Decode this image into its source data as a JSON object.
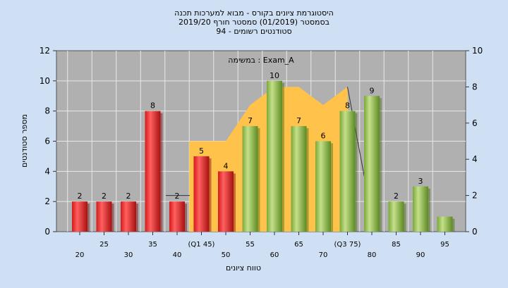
{
  "chart_data": {
    "type": "bar",
    "title_lines": [
      "היסטוגרמת ציונים בקורס - מבוא למערכות תכנה",
      "בסמסטר  (01/2019)  סמסטר חורף 2019/20",
      "סטודנטים רשומים - 94"
    ],
    "annotation": "במשימה : Exam_A",
    "xlabel": "טווח ציונים",
    "ylabel": "מספר סטודנטים",
    "ylim": [
      0,
      12
    ],
    "y_ticks": [
      0,
      2,
      4,
      6,
      8,
      10,
      12
    ],
    "y2lim": [
      0,
      10
    ],
    "y2_ticks": [
      0,
      2,
      4,
      6,
      8,
      10
    ],
    "categories": [
      20,
      25,
      30,
      35,
      40,
      45,
      50,
      55,
      60,
      65,
      70,
      75,
      80,
      85,
      90,
      95
    ],
    "x_tick_labels": [
      "20",
      "25",
      "30",
      "35",
      "40",
      "(Q1 45)",
      "50",
      "55",
      "60",
      "65",
      "70",
      "(Q3 75)",
      "80",
      "85",
      "90",
      "95"
    ],
    "values": [
      2,
      2,
      2,
      8,
      2,
      5,
      4,
      7,
      10,
      7,
      6,
      8,
      9,
      2,
      3,
      1
    ],
    "value_labels": [
      "2",
      "2",
      "2",
      "8",
      "2",
      "5",
      "4",
      "7",
      "10",
      "7",
      "6",
      "8",
      "9",
      "2",
      "3",
      ""
    ],
    "bar_colors": [
      "red",
      "red",
      "red",
      "red",
      "red",
      "red",
      "red",
      "green",
      "green",
      "green",
      "green",
      "green",
      "green",
      "green",
      "green",
      "green"
    ],
    "area_series": [
      {
        "x": 45,
        "y": 5
      },
      {
        "x": 50,
        "y": 5
      },
      {
        "x": 55,
        "y": 7
      },
      {
        "x": 60,
        "y": 8
      },
      {
        "x": 65,
        "y": 8
      },
      {
        "x": 70,
        "y": 7
      },
      {
        "x": 75,
        "y": 8
      }
    ],
    "colors": {
      "page_bg": "#cfe0f4",
      "plot_bg": "#b0b0b0",
      "red_bar": "#e02020",
      "green_bar": "#8cb84a",
      "area": "#ffc24a",
      "grid": "#e8e8e8"
    },
    "grid": true
  }
}
